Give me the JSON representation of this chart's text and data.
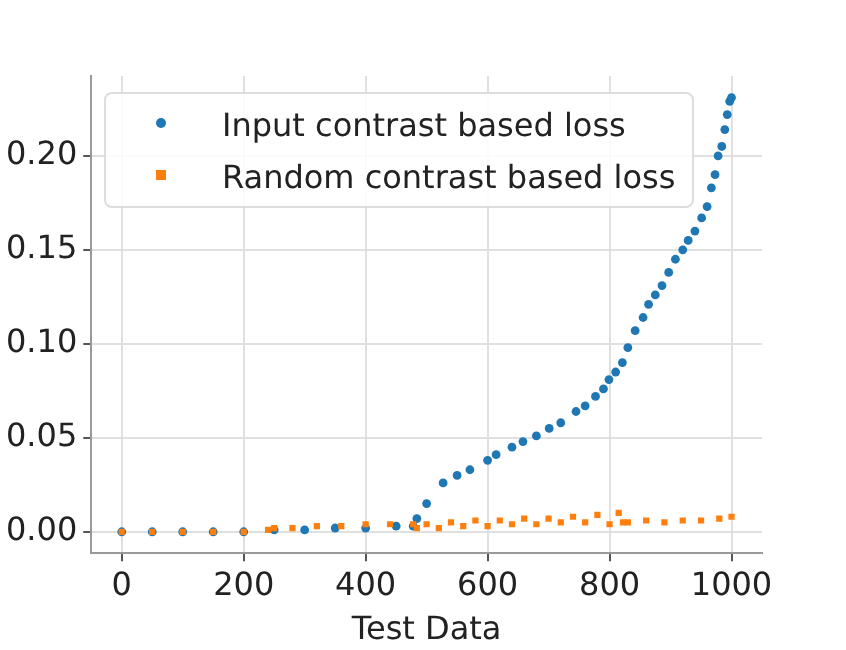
{
  "chart_data": {
    "type": "scatter",
    "xlabel": "Test Data",
    "xlim": [
      -50,
      1050
    ],
    "xticks": [
      0,
      200,
      400,
      600,
      800,
      1000
    ],
    "ylim": [
      -0.0114,
      0.2425
    ],
    "yticks": [
      {
        "value": 0,
        "label": "0.00"
      },
      {
        "value": 0.05,
        "label": "0.05"
      },
      {
        "value": 0.1,
        "label": "0.10"
      },
      {
        "value": 0.15,
        "label": "0.15"
      },
      {
        "value": 0.2,
        "label": "0.20"
      }
    ],
    "grid": true,
    "legend": "top left",
    "series": [
      {
        "name": "Input contrast based loss",
        "color": "#1f77b4",
        "marker": "circle",
        "x": [
          0,
          50,
          100,
          150,
          200,
          250,
          300,
          350,
          400,
          450,
          478,
          484,
          500,
          527,
          550,
          571,
          600,
          614,
          640,
          658,
          680,
          701,
          720,
          745,
          760,
          777,
          790,
          799,
          810,
          821,
          830,
          842,
          855,
          864,
          875,
          886,
          897,
          908,
          920,
          929,
          940,
          951,
          960,
          967,
          973,
          978,
          984,
          989,
          993,
          997,
          1000
        ],
        "values": [
          0,
          0,
          0,
          0,
          0,
          0.001,
          0.001,
          0.002,
          0.002,
          0.003,
          0.003,
          0.007,
          0.015,
          0.026,
          0.03,
          0.033,
          0.038,
          0.041,
          0.045,
          0.048,
          0.051,
          0.055,
          0.058,
          0.064,
          0.067,
          0.072,
          0.076,
          0.081,
          0.085,
          0.09,
          0.098,
          0.107,
          0.114,
          0.121,
          0.126,
          0.131,
          0.138,
          0.145,
          0.15,
          0.155,
          0.16,
          0.167,
          0.173,
          0.183,
          0.19,
          0.2,
          0.205,
          0.214,
          0.222,
          0.229,
          0.231
        ]
      },
      {
        "name": "Random contrast based loss",
        "color": "#ff7f0e",
        "marker": "square",
        "x": [
          0,
          50,
          100,
          150,
          200,
          240,
          250,
          280,
          320,
          360,
          400,
          440,
          478,
          484,
          500,
          520,
          540,
          560,
          580,
          600,
          620,
          640,
          660,
          680,
          700,
          720,
          740,
          760,
          780,
          800,
          815,
          822,
          830,
          860,
          890,
          920,
          950,
          980,
          1000
        ],
        "values": [
          0,
          0,
          0,
          0,
          0,
          0.001,
          0.002,
          0.002,
          0.003,
          0.003,
          0.004,
          0.004,
          0.004,
          0.002,
          0.004,
          0.002,
          0.005,
          0.003,
          0.006,
          0.003,
          0.006,
          0.004,
          0.007,
          0.004,
          0.007,
          0.005,
          0.008,
          0.005,
          0.009,
          0.004,
          0.01,
          0.005,
          0.005,
          0.006,
          0.005,
          0.006,
          0.006,
          0.007,
          0.008
        ]
      }
    ]
  }
}
